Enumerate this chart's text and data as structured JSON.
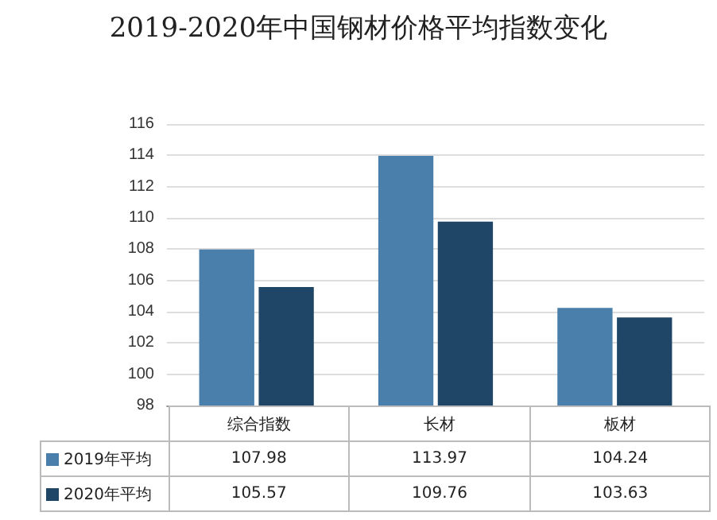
{
  "chart_data": {
    "type": "bar",
    "title": "2019-2020年中国钢材价格平均指数变化",
    "categories": [
      "综合指数",
      "长材",
      "板材"
    ],
    "series": [
      {
        "name": "2019年平均",
        "color": "#4a7eab",
        "values": [
          107.98,
          113.97,
          104.24
        ]
      },
      {
        "name": "2020年平均",
        "color": "#1f4666",
        "values": [
          105.57,
          109.76,
          103.63
        ]
      }
    ],
    "ylim": [
      98,
      116
    ],
    "yticks": [
      98,
      100,
      102,
      104,
      106,
      108,
      110,
      112,
      114,
      116
    ],
    "grid": "y",
    "legend": "bottom",
    "data_labels": true
  }
}
